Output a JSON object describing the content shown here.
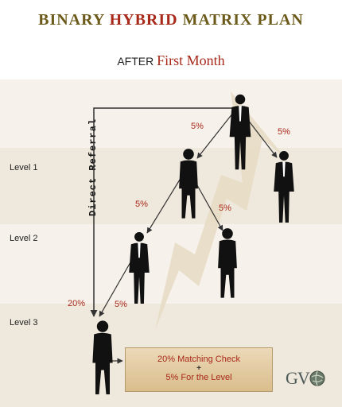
{
  "title": {
    "part1": "BINARY ",
    "highlight": "HYBRID",
    "part2": " MATRIX PLAN"
  },
  "subtitle": {
    "prefix": "AFTER ",
    "main": "First Month"
  },
  "levels": [
    "Level 1",
    "Level 2",
    "Level 3"
  ],
  "direct_referral": "Direct Referral",
  "percents": {
    "top_left": "5%",
    "top_right": "5%",
    "mid_left": "5%",
    "mid_right": "5%",
    "direct": "20%",
    "bottom": "5%"
  },
  "info_box": {
    "line1": "20% Matching Check",
    "plus": "+",
    "line2": "5% For the Level"
  },
  "logo": "GV",
  "colors": {
    "accent": "#a8281a",
    "title": "#6b5a1a",
    "band": "#f3ede3",
    "box": "#e3caa0"
  }
}
